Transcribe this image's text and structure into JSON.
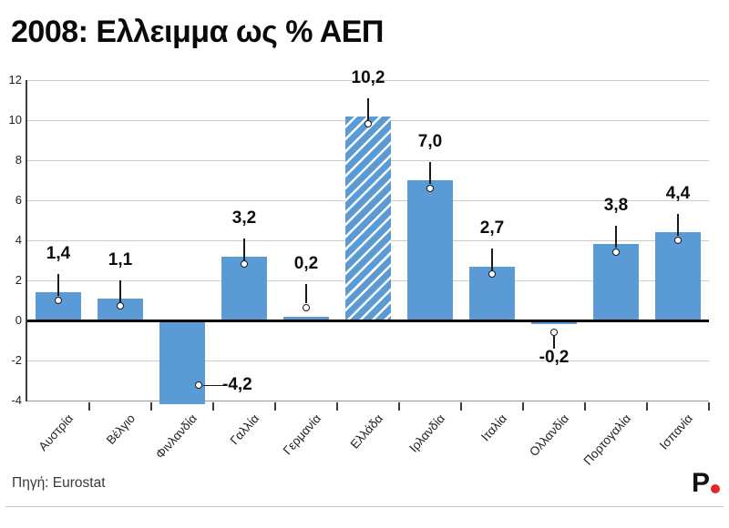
{
  "title": "2008: Ελλειμμα ως % ΑΕΠ",
  "source": {
    "label": "Πηγή: Eurostat"
  },
  "logo": {
    "letter": "P",
    "dot_color": "#e32526"
  },
  "colors": {
    "bar": "#5B9BD5",
    "hatch_stripe": "#ffffff",
    "grid": "#cccccc",
    "zero_line": "#000000",
    "axis": "#3d3d3d",
    "logo_dot": "#e32526"
  },
  "chart_data": {
    "type": "bar",
    "title": "2008: Ελλειμμα ως % ΑΕΠ",
    "xlabel": "",
    "ylabel": "",
    "categories": [
      "Αυστρία",
      "Βέλγιο",
      "Φινλανδία",
      "Γαλλία",
      "Γερμανία",
      "Ελλάδα",
      "Ιρλανδία",
      "Ιταλία",
      "Ολλανδία",
      "Πορτογαλία",
      "Ισπανία"
    ],
    "values": [
      1.4,
      1.1,
      -4.2,
      3.2,
      0.2,
      10.2,
      7.0,
      2.7,
      -0.2,
      3.8,
      4.4
    ],
    "value_labels": [
      "1,4",
      "1,1",
      "-4,2",
      "3,2",
      "0,2",
      "10,2",
      "7,0",
      "2,7",
      "-0,2",
      "3,8",
      "4,4"
    ],
    "label_positions": [
      "top",
      "top",
      "right",
      "top",
      "top-far",
      "top",
      "top",
      "top",
      "bottom-far",
      "top",
      "top"
    ],
    "highlighted_category": "Ελλάδα",
    "highlight_style": "diagonal-hatch",
    "y_axis": {
      "min": -4,
      "max": 12,
      "tick_step": 2,
      "ticks": [
        12,
        10,
        8,
        6,
        4,
        2,
        0,
        -2,
        -4
      ]
    },
    "grid": true,
    "legend": false
  }
}
